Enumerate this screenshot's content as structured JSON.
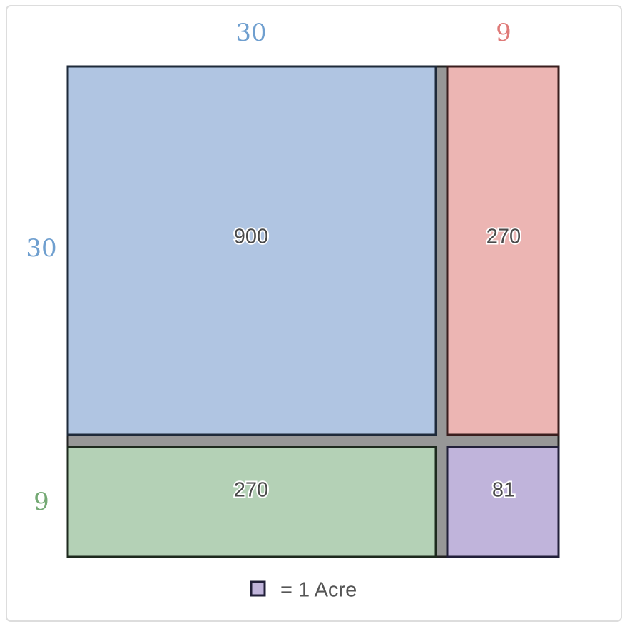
{
  "top_labels": [
    "30",
    "9"
  ],
  "side_labels": [
    "30",
    "9"
  ],
  "cells": [
    "900",
    "270",
    "270",
    "81"
  ],
  "legend": {
    "label": "= 1 Acre"
  }
}
